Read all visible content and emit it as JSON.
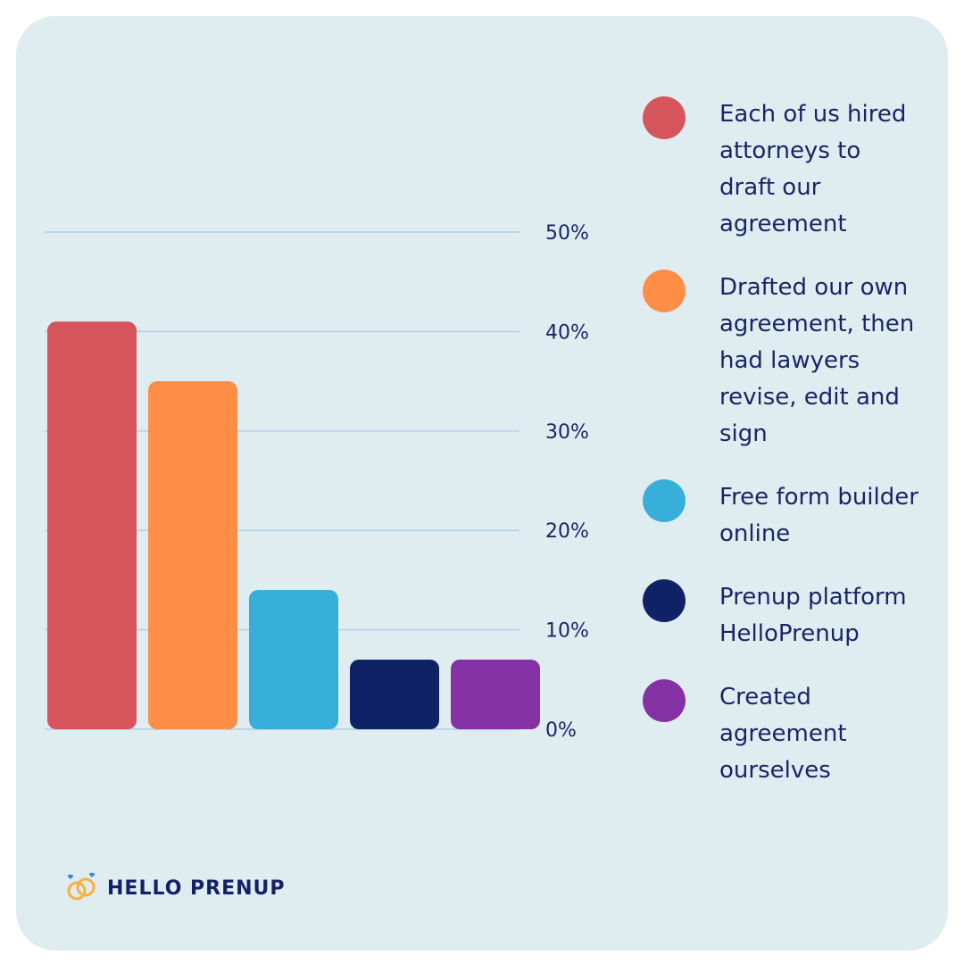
{
  "chart_data": {
    "type": "bar",
    "categories": [
      null,
      null,
      null,
      null,
      null
    ],
    "series": [
      {
        "name": "Each of us hired attorneys to draft our agreement",
        "color": "#d6555c",
        "values": [
          41,
          null,
          null,
          null,
          null
        ]
      },
      {
        "name": "Drafted our own agreement, then had lawyers revise, edit and sign",
        "color": "#fe8e46",
        "values": [
          null,
          35,
          null,
          null,
          null
        ]
      },
      {
        "name": "Free form builder online",
        "color": "#38afdb",
        "values": [
          null,
          null,
          14,
          null,
          null
        ]
      },
      {
        "name": "Prenup platform HelloPrenup",
        "color": "#102266",
        "values": [
          null,
          null,
          null,
          7,
          null
        ]
      },
      {
        "name": "Created agreement ourselves",
        "color": "#8531a6",
        "values": [
          null,
          null,
          null,
          null,
          7
        ]
      }
    ],
    "ylim": [
      0,
      50
    ],
    "yticks": [
      {
        "value": 0,
        "label": "0%"
      },
      {
        "value": 10,
        "label": "10%"
      },
      {
        "value": 20,
        "label": "20%"
      },
      {
        "value": 30,
        "label": "30%"
      },
      {
        "value": 40,
        "label": "40%"
      },
      {
        "value": 50,
        "label": "50%"
      }
    ],
    "grid": true
  },
  "logo": "HELLO PRENUP"
}
